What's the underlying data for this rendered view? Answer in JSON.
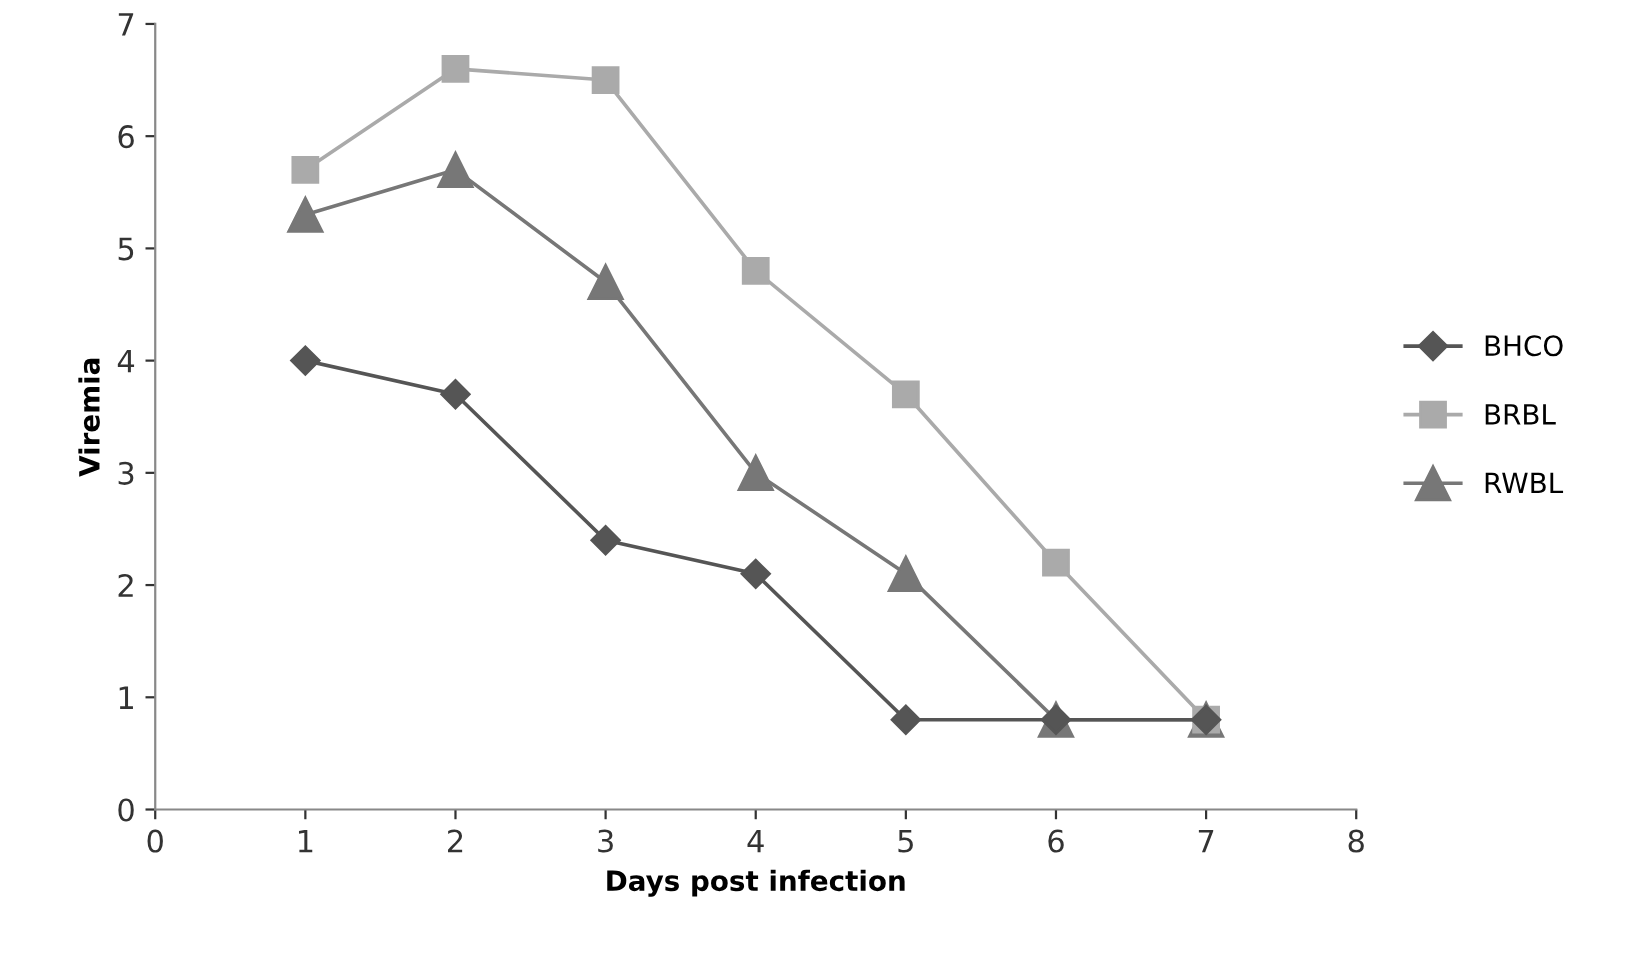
{
  "chart_data": {
    "type": "line",
    "xlabel": "Days post infection",
    "ylabel": "Viremia",
    "x": [
      1,
      2,
      3,
      4,
      5,
      6,
      7
    ],
    "series": [
      {
        "name": "BHCO",
        "color": "#555555",
        "marker": "diamond",
        "values": [
          4.0,
          3.7,
          2.4,
          2.1,
          0.8,
          0.8,
          0.8
        ]
      },
      {
        "name": "BRBL",
        "color": "#aaaaaa",
        "marker": "square",
        "values": [
          5.7,
          6.6,
          6.5,
          4.8,
          3.7,
          2.2,
          0.8
        ]
      },
      {
        "name": "RWBL",
        "color": "#777777",
        "marker": "triangle",
        "values": [
          5.3,
          5.7,
          4.7,
          3.0,
          2.1,
          0.8,
          0.8
        ]
      }
    ],
    "xlim": [
      0,
      8
    ],
    "xticks": [
      0,
      1,
      2,
      3,
      4,
      5,
      6,
      7,
      8
    ],
    "ylim": [
      0,
      7
    ],
    "yticks": [
      0,
      1,
      2,
      3,
      4,
      5,
      6,
      7
    ],
    "grid": false,
    "legend": "right",
    "line_style": "solid"
  }
}
